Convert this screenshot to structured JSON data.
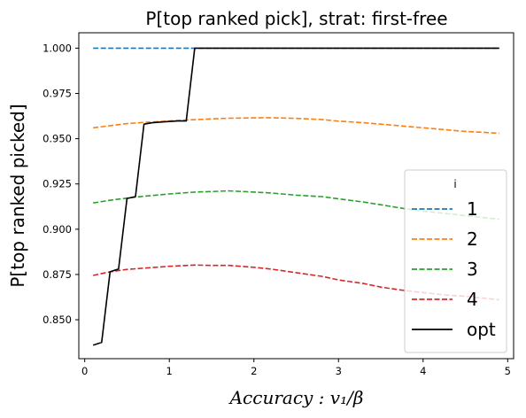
{
  "chart_data": {
    "type": "line",
    "title": "P[top ranked pick], strat: first-free",
    "xlabel": "Accuracy : v₁/β",
    "ylabel": "P[top ranked picked]",
    "xlim": [
      -0.07,
      5.07
    ],
    "ylim": [
      0.8285,
      1.0085
    ],
    "xticks": [
      "0",
      "1",
      "2",
      "3",
      "4",
      "5"
    ],
    "yticks": [
      "0.850",
      "0.875",
      "0.900",
      "0.925",
      "0.950",
      "0.975",
      "1.000"
    ],
    "grid": false,
    "legend": {
      "title": "i",
      "position": "lower-right"
    },
    "series": [
      {
        "name": "1",
        "color": "#1f77b4",
        "style": "dashed",
        "x": [
          0.1,
          0.5,
          1.0,
          1.3,
          1.5,
          2.0,
          2.5,
          3.0,
          3.5,
          4.0,
          4.5,
          4.9
        ],
        "y": [
          1.0,
          1.0,
          1.0,
          1.0,
          1.0,
          1.0,
          1.0,
          1.0,
          1.0,
          1.0,
          1.0,
          1.0
        ]
      },
      {
        "name": "2",
        "color": "#ff7f0e",
        "style": "dashed",
        "x": [
          0.1,
          0.3,
          0.5,
          0.7,
          1.0,
          1.3,
          1.5,
          1.7,
          2.0,
          2.2,
          2.5,
          2.8,
          3.0,
          3.3,
          3.5,
          3.8,
          4.0,
          4.3,
          4.5,
          4.7,
          4.9
        ],
        "y": [
          0.956,
          0.9572,
          0.9583,
          0.959,
          0.9598,
          0.9605,
          0.9609,
          0.9613,
          0.9615,
          0.9616,
          0.9612,
          0.9606,
          0.9597,
          0.9588,
          0.958,
          0.9568,
          0.956,
          0.9548,
          0.954,
          0.9535,
          0.953
        ]
      },
      {
        "name": "3",
        "color": "#2ca02c",
        "style": "dashed",
        "x": [
          0.1,
          0.3,
          0.5,
          0.7,
          1.0,
          1.3,
          1.5,
          1.7,
          2.0,
          2.2,
          2.5,
          2.8,
          3.0,
          3.3,
          3.5,
          3.8,
          4.0,
          4.3,
          4.5,
          4.7,
          4.9
        ],
        "y": [
          0.9145,
          0.916,
          0.9172,
          0.9182,
          0.9195,
          0.9205,
          0.9208,
          0.9212,
          0.9205,
          0.92,
          0.9188,
          0.918,
          0.9168,
          0.915,
          0.9135,
          0.9112,
          0.91,
          0.9085,
          0.9075,
          0.9065,
          0.9055
        ]
      },
      {
        "name": "4",
        "color": "#d62728",
        "style": "dashed",
        "x": [
          0.1,
          0.3,
          0.5,
          0.7,
          1.0,
          1.3,
          1.5,
          1.7,
          2.0,
          2.2,
          2.5,
          2.8,
          3.0,
          3.3,
          3.5,
          3.8,
          4.0,
          4.3,
          4.5,
          4.7,
          4.9
        ],
        "y": [
          0.8745,
          0.8765,
          0.8778,
          0.8785,
          0.8795,
          0.8802,
          0.88,
          0.88,
          0.879,
          0.878,
          0.876,
          0.874,
          0.872,
          0.87,
          0.868,
          0.866,
          0.865,
          0.8635,
          0.863,
          0.862,
          0.861
        ]
      },
      {
        "name": "opt",
        "color": "#000000",
        "style": "solid",
        "x": [
          0.1,
          0.2,
          0.3,
          0.4,
          0.5,
          0.6,
          0.7,
          0.8,
          0.9,
          1.0,
          1.1,
          1.2,
          1.3,
          1.5,
          2.0,
          2.5,
          3.0,
          3.5,
          4.0,
          4.5,
          4.9
        ],
        "y": [
          0.836,
          0.8375,
          0.8765,
          0.878,
          0.917,
          0.918,
          0.958,
          0.9588,
          0.9592,
          0.9595,
          0.9598,
          0.9598,
          1.0,
          1.0,
          1.0,
          1.0,
          1.0,
          1.0,
          1.0,
          1.0,
          1.0
        ]
      }
    ]
  }
}
